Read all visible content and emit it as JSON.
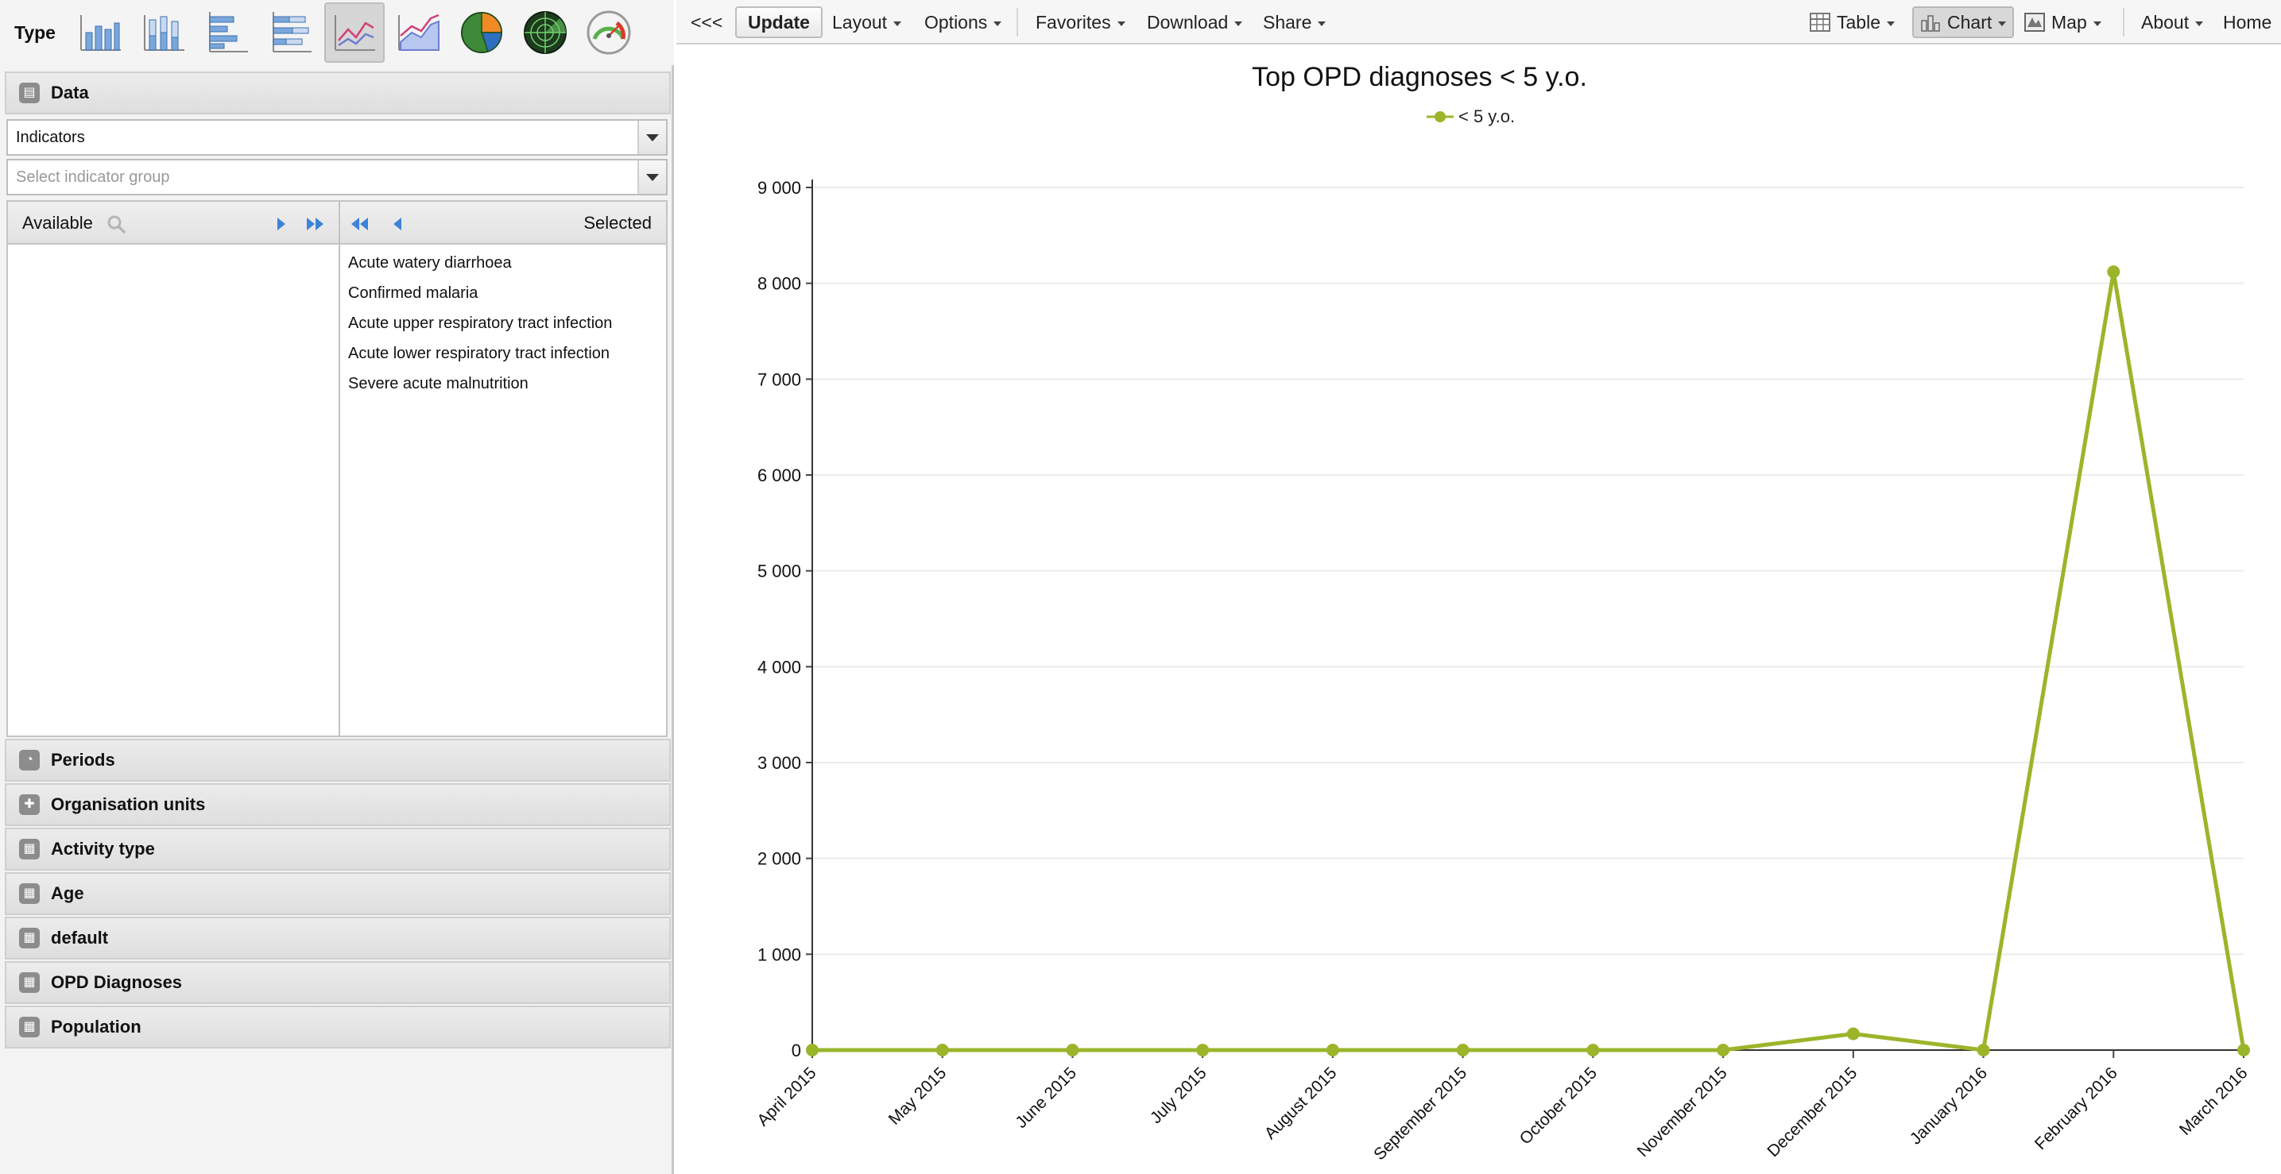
{
  "left_panel": {
    "type_label": "Type",
    "chart_types": [
      {
        "icon": "column-chart-icon",
        "active": false
      },
      {
        "icon": "stacked-column-chart-icon",
        "active": false
      },
      {
        "icon": "bar-chart-icon",
        "active": false
      },
      {
        "icon": "stacked-bar-chart-icon",
        "active": false
      },
      {
        "icon": "line-chart-icon",
        "active": true
      },
      {
        "icon": "area-chart-icon",
        "active": false
      },
      {
        "icon": "pie-chart-icon",
        "active": false
      },
      {
        "icon": "radar-chart-icon",
        "active": false
      },
      {
        "icon": "gauge-chart-icon",
        "active": false
      }
    ],
    "data_section": {
      "title": "Data",
      "data_type_value": "Indicators",
      "group_placeholder": "Select indicator group",
      "available_label": "Available",
      "selected_label": "Selected",
      "selected_items": [
        "Acute watery diarrhoea",
        "Confirmed malaria",
        "Acute upper respiratory tract infection",
        "Acute lower respiratory tract infection",
        "Severe acute malnutrition"
      ]
    },
    "sections": [
      {
        "title": "Periods",
        "icon": "clock-icon"
      },
      {
        "title": "Organisation units",
        "icon": "plus-icon"
      },
      {
        "title": "Activity type",
        "icon": "grid-icon"
      },
      {
        "title": "Age",
        "icon": "grid-icon"
      },
      {
        "title": "default",
        "icon": "grid-icon"
      },
      {
        "title": "OPD Diagnoses",
        "icon": "grid-icon"
      },
      {
        "title": "Population",
        "icon": "grid-icon"
      }
    ]
  },
  "toolbar": {
    "collapse": "<<<",
    "update": "Update",
    "layout": "Layout",
    "options": "Options",
    "favorites": "Favorites",
    "download": "Download",
    "share": "Share",
    "table": "Table",
    "chart": "Chart",
    "map": "Map",
    "about": "About",
    "home": "Home"
  },
  "chart_data": {
    "type": "line",
    "title": "Top OPD diagnoses < 5 y.o.",
    "xlabel": "",
    "ylabel": "",
    "categories": [
      "April 2015",
      "May 2015",
      "June 2015",
      "July 2015",
      "August 2015",
      "September 2015",
      "October 2015",
      "November 2015",
      "December 2015",
      "January 2016",
      "February 2016",
      "March 2016"
    ],
    "series": [
      {
        "name": "< 5 y.o.",
        "values": [
          0,
          0,
          0,
          0,
          0,
          0,
          0,
          0,
          170,
          0,
          8120,
          0
        ],
        "color": "#9bb52a"
      }
    ],
    "ylim": [
      0,
      9000
    ],
    "yticks": [
      0,
      1000,
      2000,
      3000,
      4000,
      5000,
      6000,
      7000,
      8000,
      9000
    ],
    "ytick_labels": [
      "0",
      "1 000",
      "2 000",
      "3 000",
      "4 000",
      "5 000",
      "6 000",
      "7 000",
      "8 000",
      "9 000"
    ],
    "grid": true,
    "legend": "top-center"
  }
}
